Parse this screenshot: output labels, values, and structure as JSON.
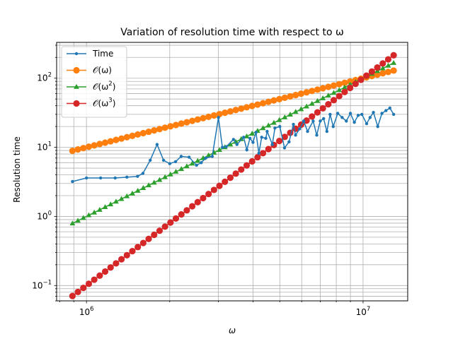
{
  "chart_data": {
    "type": "line",
    "title": "Variation of resolution time with respect to ω",
    "xlabel": "ω",
    "ylabel": "Resolution time",
    "xscale": "log",
    "yscale": "log",
    "xlim": [
      780000,
      14500000
    ],
    "ylim": [
      0.06,
      330
    ],
    "grid": "both-major-minor",
    "legend_position": "upper-left",
    "x_ticks": [
      {
        "value": 1000000,
        "base": "10",
        "exp": "6"
      },
      {
        "value": 10000000,
        "base": "10",
        "exp": "7"
      }
    ],
    "y_ticks": [
      {
        "value": 0.1,
        "base": "10",
        "exp": "−1"
      },
      {
        "value": 1,
        "base": "10",
        "exp": "0"
      },
      {
        "value": 10,
        "base": "10",
        "exp": "1"
      },
      {
        "value": 100,
        "base": "10",
        "exp": "2"
      }
    ],
    "series": [
      {
        "name": "Time",
        "color": "#1f77b4",
        "marker": "dot",
        "x": [
          890000,
          1000000,
          1125000,
          1270000,
          1400000,
          1530000,
          1600000,
          1700000,
          1800000,
          1900000,
          2000000,
          2100000,
          2200000,
          2350000,
          2500000,
          2600000,
          2700000,
          2850000,
          3000000,
          3100000,
          3200000,
          3400000,
          3500000,
          3700000,
          3800000,
          3900000,
          4000000,
          4100000,
          4200000,
          4300000,
          4450000,
          4500000,
          4700000,
          4800000,
          5000000,
          5200000,
          5400000,
          5600000,
          5700000,
          5900000,
          6100000,
          6300000,
          6600000,
          6800000,
          7000000,
          7200000,
          7400000,
          7600000,
          7800000,
          8100000,
          8400000,
          8700000,
          9000000,
          9300000,
          9600000,
          9900000,
          10300000,
          10600000,
          10900000,
          11300000,
          11700000,
          12100000,
          12500000,
          12900000
        ],
        "y": [
          3.2,
          3.6,
          3.6,
          3.6,
          3.7,
          3.8,
          4.2,
          6.5,
          11.0,
          6.5,
          5.8,
          6.2,
          7.4,
          7.2,
          5.5,
          6.0,
          7.0,
          7.4,
          27.0,
          10.0,
          10.2,
          13.0,
          11.0,
          14.0,
          9.2,
          13.5,
          11.8,
          16.5,
          8.2,
          14.0,
          13.5,
          17.0,
          11.0,
          19.0,
          20.0,
          9.8,
          12.0,
          21.5,
          15.0,
          18.5,
          24.0,
          17.0,
          24.0,
          15.0,
          24.0,
          26.0,
          17.0,
          30.0,
          20.0,
          31.0,
          27.0,
          24.0,
          31.0,
          23.0,
          29.0,
          30.0,
          22.0,
          27.0,
          32.0,
          20.0,
          31.0,
          34.0,
          37.0,
          30.0
        ]
      },
      {
        "name": "𝒪(ω)",
        "label_base": "𝒪(ω",
        "label_exp": "",
        "color": "#ff7f0e",
        "marker": "circle",
        "formula": "y = 10 * (x / 1e6)",
        "x_start": 890000,
        "x_end": 12900000,
        "points": 60
      },
      {
        "name": "𝒪(ω²)",
        "label_base": "𝒪(ω",
        "label_exp": "2",
        "color": "#2ca02c",
        "marker": "triangle",
        "formula": "y = 1 * (x / 1e6)^2",
        "x_start": 890000,
        "x_end": 12900000,
        "points": 60
      },
      {
        "name": "𝒪(ω³)",
        "label_base": "𝒪(ω",
        "label_exp": "3",
        "color": "#d62728",
        "marker": "circle",
        "formula": "y = 0.1 * (x / 1e6)^3",
        "x_start": 890000,
        "x_end": 12900000,
        "points": 60
      }
    ]
  }
}
